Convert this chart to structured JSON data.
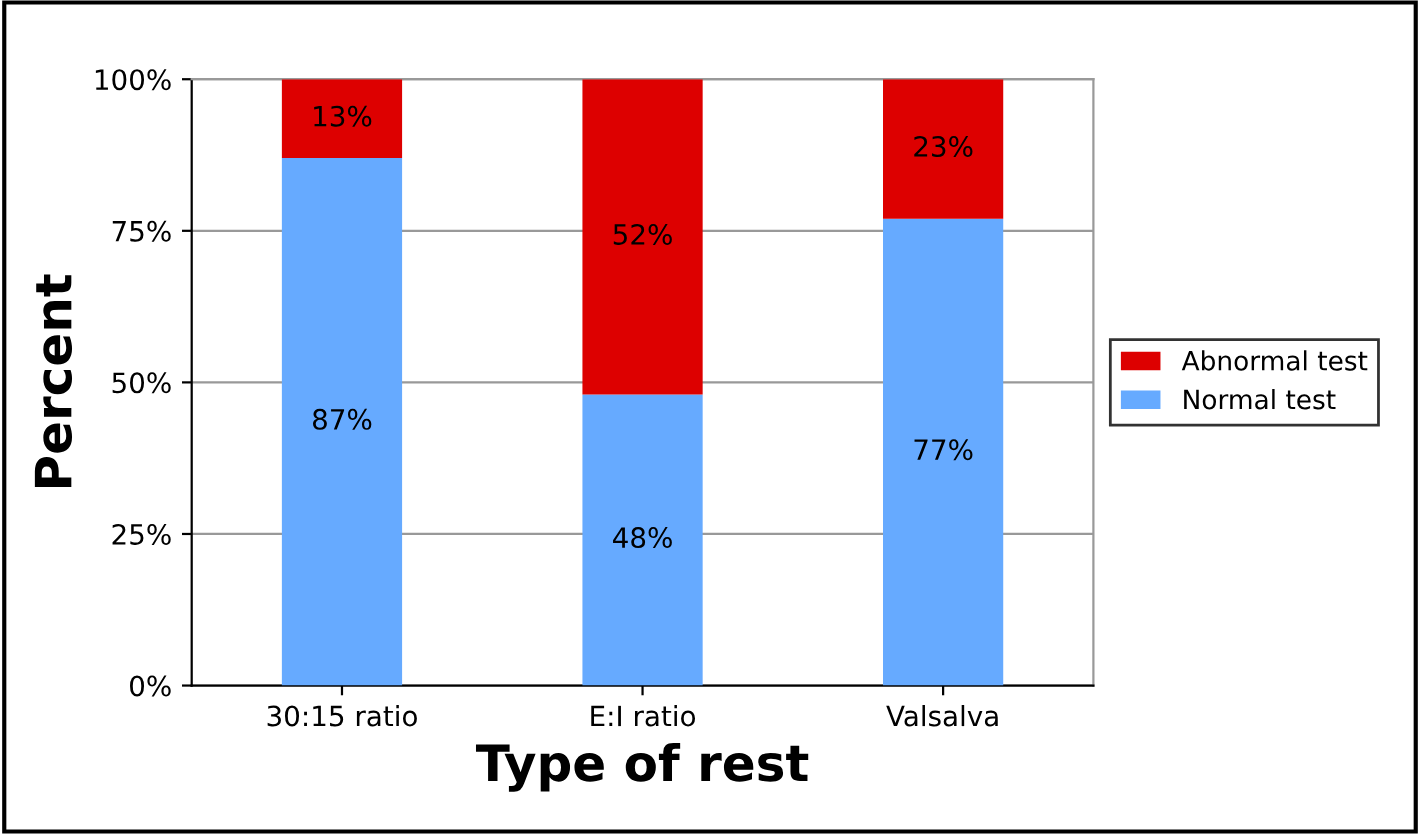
{
  "chart_data": {
    "type": "bar",
    "stacked": true,
    "categories": [
      "30:15 ratio",
      "E:I ratio",
      "Valsalva"
    ],
    "series": [
      {
        "name": "Normal test",
        "color": "#66aaff",
        "values": [
          87,
          48,
          77
        ],
        "value_labels": [
          "87%",
          "48%",
          "77%"
        ]
      },
      {
        "name": "Abnormal test",
        "color": "#dd0000",
        "values": [
          13,
          52,
          23
        ],
        "value_labels": [
          "13%",
          "52%",
          "23%"
        ]
      }
    ],
    "xlabel": "Type of rest",
    "ylabel": "Percent",
    "ylim": [
      0,
      100
    ],
    "yticks": [
      {
        "value": 0,
        "label": "0%"
      },
      {
        "value": 25,
        "label": "25%"
      },
      {
        "value": 50,
        "label": "50%"
      },
      {
        "value": 75,
        "label": "75%"
      },
      {
        "value": 100,
        "label": "100%"
      }
    ],
    "grid": "y",
    "legend": "right"
  }
}
